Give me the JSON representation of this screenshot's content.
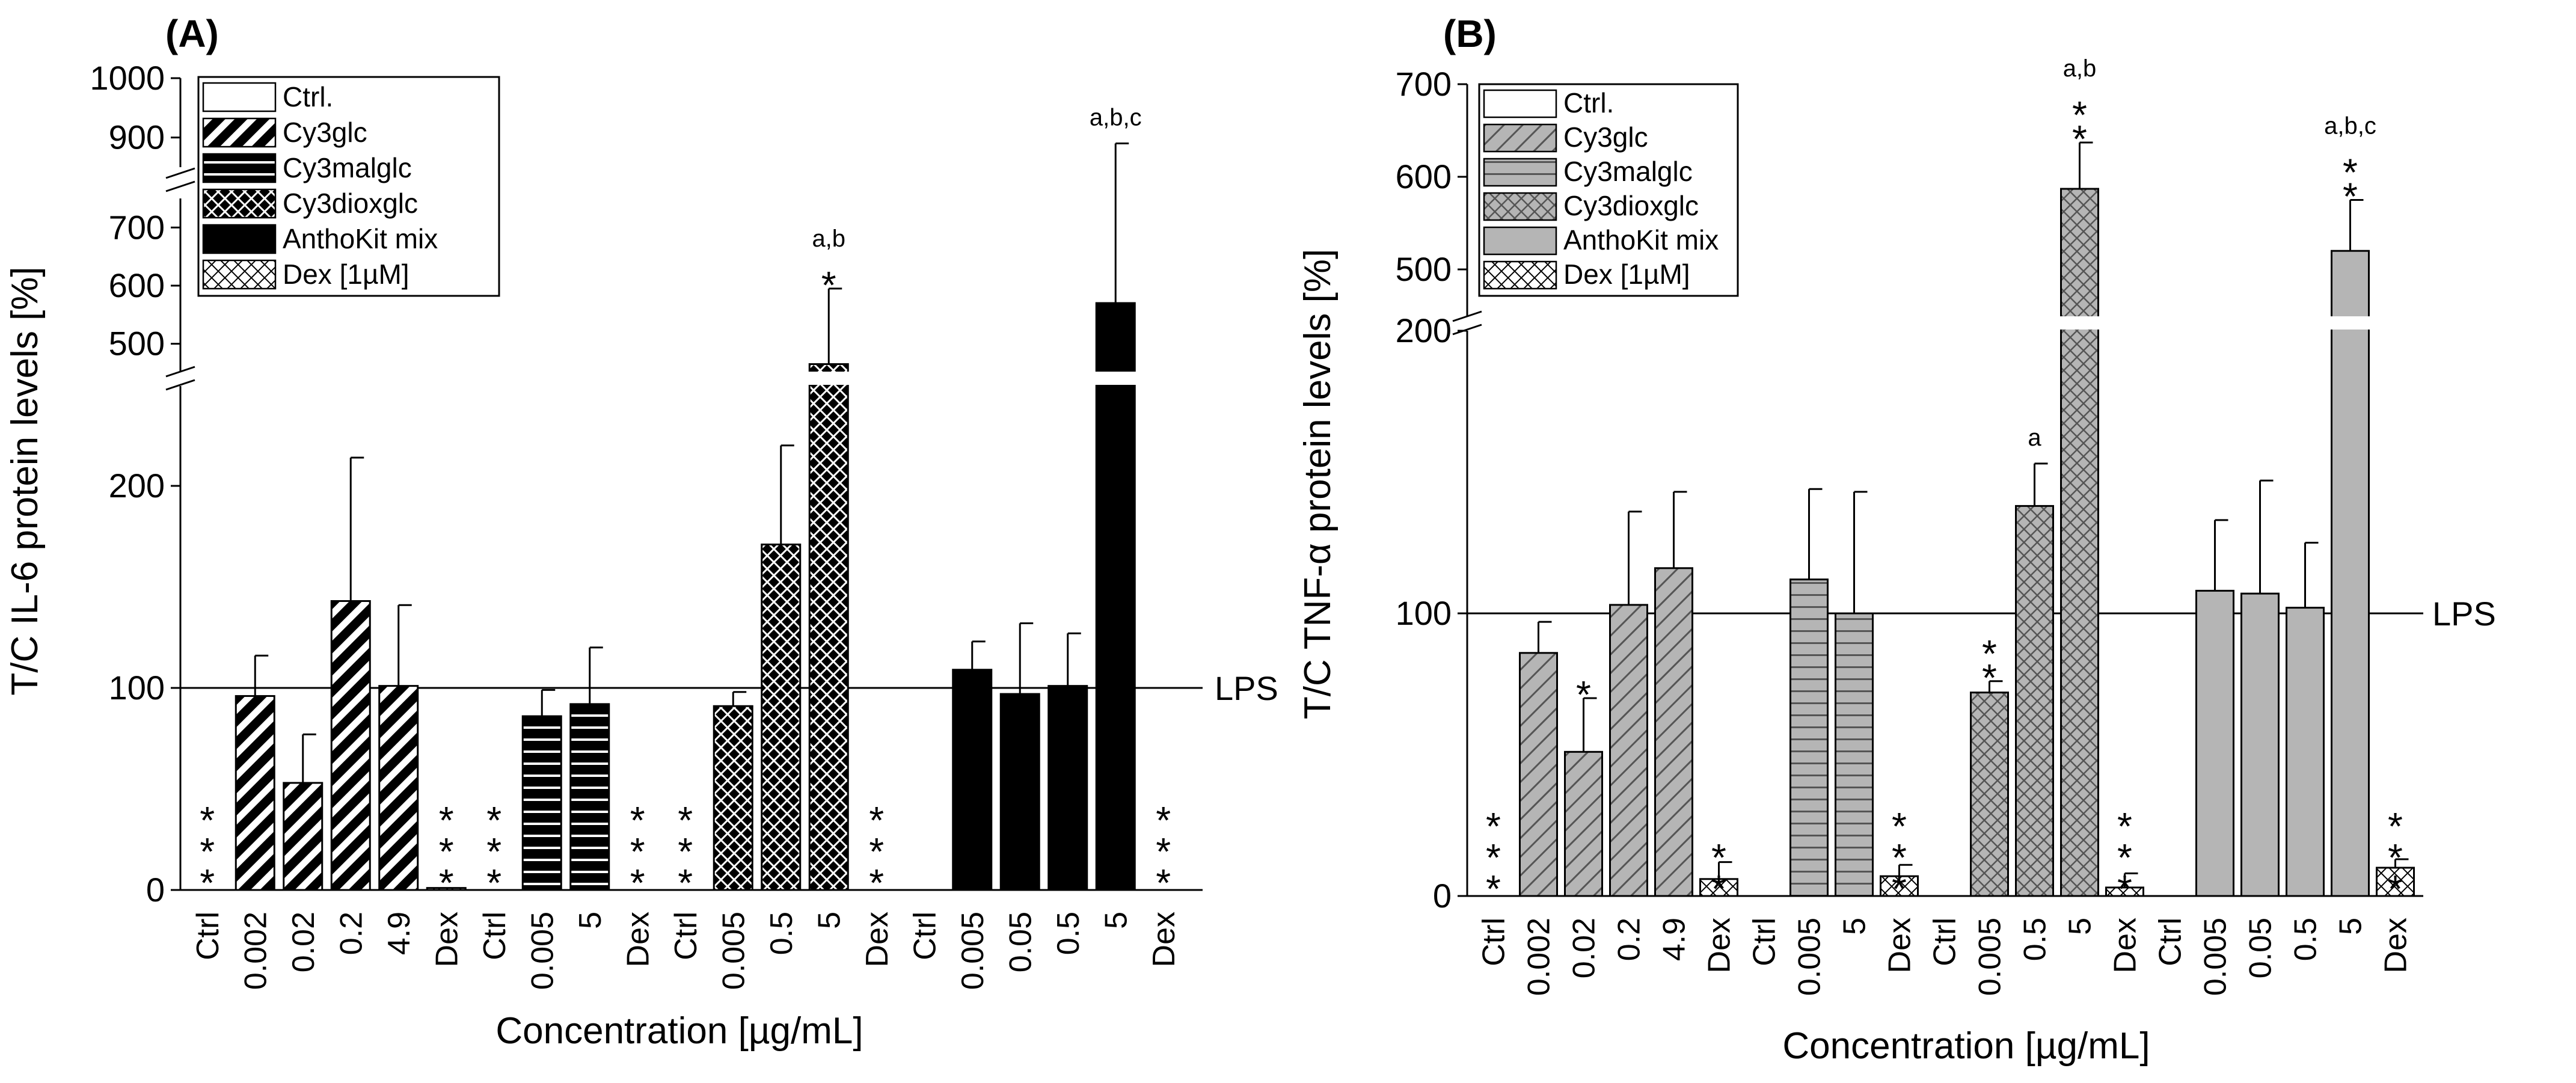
{
  "chart_data": [
    {
      "panel": "(A)",
      "type": "bar",
      "ylabel": "T/C IL-6 protein levels [%]",
      "xlabel": "Concentration [µg/mL]",
      "y_ticks": [
        "0",
        "100",
        "200",
        "500",
        "600",
        "700",
        "900",
        "1000"
      ],
      "ref_line": {
        "value": 100,
        "label": "LPS"
      },
      "legend": [
        {
          "name": "Ctrl.",
          "pattern": "white"
        },
        {
          "name": "Cy3glc",
          "pattern": "diag"
        },
        {
          "name": "Cy3malglc",
          "pattern": "horiz"
        },
        {
          "name": "Cy3dioxglc",
          "pattern": "cross"
        },
        {
          "name": "AnthoKit mix",
          "pattern": "solid"
        },
        {
          "name": "Dex [1µM]",
          "pattern": "dex"
        }
      ],
      "bars": [
        {
          "label": "Ctrl",
          "value": 0,
          "err": 0,
          "pattern": "white",
          "star": "* * *"
        },
        {
          "label": "0.002",
          "value": 96,
          "err": 20,
          "pattern": "diag"
        },
        {
          "label": "0.02",
          "value": 53,
          "err": 24,
          "pattern": "diag"
        },
        {
          "label": "0.2",
          "value": 143,
          "err": 71,
          "pattern": "diag"
        },
        {
          "label": "4.9",
          "value": 101,
          "err": 40,
          "pattern": "diag"
        },
        {
          "label": "Dex",
          "value": 1,
          "err": 0,
          "pattern": "dex",
          "star": "* * *"
        },
        {
          "label": "Ctrl",
          "value": 0,
          "err": 0,
          "pattern": "white",
          "star": "* * *"
        },
        {
          "label": "0.005",
          "value": 86,
          "err": 13,
          "pattern": "horiz"
        },
        {
          "label": "5",
          "value": 92,
          "err": 28,
          "pattern": "horiz"
        },
        {
          "label": "Dex",
          "value": 0,
          "err": 0,
          "pattern": "dex",
          "star": "* * *"
        },
        {
          "label": "Ctrl",
          "value": 0,
          "err": 0,
          "pattern": "white",
          "star": "* * *"
        },
        {
          "label": "0.005",
          "value": 91,
          "err": 7,
          "pattern": "cross"
        },
        {
          "label": "0.5",
          "value": 171,
          "err": 49,
          "pattern": "cross"
        },
        {
          "label": "5",
          "value": 465,
          "err": 130,
          "pattern": "cross",
          "annot": "a,b",
          "star": "*"
        },
        {
          "label": "Dex",
          "value": 0,
          "err": 0,
          "pattern": "dex",
          "star": "* * *"
        },
        {
          "label": "Ctrl",
          "value": 0,
          "err": 0,
          "pattern": "white"
        },
        {
          "label": "0.005",
          "value": 109,
          "err": 14,
          "pattern": "solid"
        },
        {
          "label": "0.05",
          "value": 97,
          "err": 35,
          "pattern": "solid"
        },
        {
          "label": "0.5",
          "value": 101,
          "err": 26,
          "pattern": "solid"
        },
        {
          "label": "5",
          "value": 570,
          "err": 320,
          "pattern": "solid",
          "annot": "a,b,c"
        },
        {
          "label": "Dex",
          "value": 0,
          "err": 0,
          "pattern": "dex",
          "star": "* * *"
        }
      ]
    },
    {
      "panel": "(B)",
      "type": "bar",
      "ylabel": "T/C TNF-α protein levels [%]",
      "xlabel": "Concentration [µg/mL]",
      "y_ticks": [
        "0",
        "100",
        "200",
        "500",
        "600",
        "700"
      ],
      "ref_line": {
        "value": 100,
        "label": "LPS"
      },
      "legend": [
        {
          "name": "Ctrl.",
          "pattern": "white"
        },
        {
          "name": "Cy3glc",
          "pattern": "gdiag"
        },
        {
          "name": "Cy3malglc",
          "pattern": "ghoriz"
        },
        {
          "name": "Cy3dioxglc",
          "pattern": "gcross"
        },
        {
          "name": "AnthoKit mix",
          "pattern": "gsolid"
        },
        {
          "name": "Dex [1µM]",
          "pattern": "dex"
        }
      ],
      "bars": [
        {
          "label": "Ctrl",
          "value": 0,
          "err": 0,
          "pattern": "white",
          "star": "* * *"
        },
        {
          "label": "0.002",
          "value": 86,
          "err": 11,
          "pattern": "gdiag"
        },
        {
          "label": "0.02",
          "value": 51,
          "err": 19,
          "pattern": "gdiag",
          "star": "*"
        },
        {
          "label": "0.2",
          "value": 103,
          "err": 33,
          "pattern": "gdiag"
        },
        {
          "label": "4.9",
          "value": 116,
          "err": 27,
          "pattern": "gdiag"
        },
        {
          "label": "Dex",
          "value": 6,
          "err": 6,
          "pattern": "dex",
          "star": "* *"
        },
        {
          "label": "Ctrl",
          "value": 0,
          "err": 0,
          "pattern": "white"
        },
        {
          "label": "0.005",
          "value": 112,
          "err": 32,
          "pattern": "ghoriz"
        },
        {
          "label": "5",
          "value": 100,
          "err": 43,
          "pattern": "ghoriz"
        },
        {
          "label": "Dex",
          "value": 7,
          "err": 4,
          "pattern": "dex",
          "star": "* * *"
        },
        {
          "label": "Ctrl",
          "value": 0,
          "err": 0,
          "pattern": "white"
        },
        {
          "label": "0.005",
          "value": 72,
          "err": 4,
          "pattern": "gcross",
          "star": "* *"
        },
        {
          "label": "0.5",
          "value": 138,
          "err": 15,
          "pattern": "gcross",
          "annot": "a"
        },
        {
          "label": "5",
          "value": 587,
          "err": 50,
          "pattern": "gcross",
          "annot": "a,b",
          "star": "* *"
        },
        {
          "label": "Dex",
          "value": 3,
          "err": 5,
          "pattern": "dex",
          "star": "* * *"
        },
        {
          "label": "Ctrl",
          "value": 0,
          "err": 0,
          "pattern": "white"
        },
        {
          "label": "0.005",
          "value": 108,
          "err": 25,
          "pattern": "gsolid"
        },
        {
          "label": "0.05",
          "value": 107,
          "err": 40,
          "pattern": "gsolid"
        },
        {
          "label": "0.5",
          "value": 102,
          "err": 23,
          "pattern": "gsolid"
        },
        {
          "label": "5",
          "value": 520,
          "err": 55,
          "pattern": "gsolid",
          "annot": "a,b,c",
          "star": "* *"
        },
        {
          "label": "Dex",
          "value": 10,
          "err": 3,
          "pattern": "dex",
          "star": "* * *"
        }
      ]
    }
  ]
}
